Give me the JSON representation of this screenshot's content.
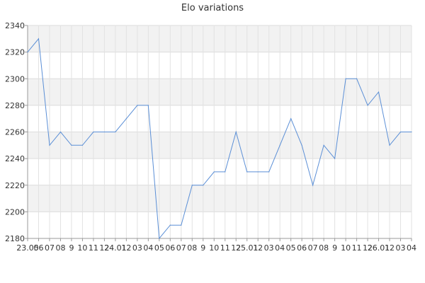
{
  "chart_data": {
    "type": "line",
    "title": "Elo variations",
    "xlabel": "",
    "ylabel": "",
    "ylim": [
      2180,
      2340
    ],
    "y_ticks": [
      2180,
      2200,
      2220,
      2240,
      2260,
      2280,
      2300,
      2320,
      2340
    ],
    "grid": true,
    "banded_background": true,
    "x_tick_labels": [
      "23.05",
      "06",
      "07",
      "08",
      "9",
      "10",
      "11",
      "12",
      "24.01",
      "12",
      "03",
      "04",
      "05",
      "06",
      "07",
      "08",
      "9",
      "10",
      "11",
      "12",
      "25.01",
      "12",
      "03",
      "04",
      "05",
      "06",
      "07",
      "08",
      "9",
      "10",
      "11",
      "12",
      "26.01",
      "12",
      "03",
      "04"
    ],
    "series": [
      {
        "values": [
          2320,
          2330,
          2250,
          2260,
          2250,
          2250,
          2260,
          2260,
          2260,
          2270,
          2280,
          2280,
          2180,
          2190,
          2190,
          2220,
          2220,
          2230,
          2230,
          2260,
          2230,
          2230,
          2230,
          2250,
          2270,
          2250,
          2220,
          2250,
          2240,
          2300,
          2300,
          2280,
          2290,
          2250,
          2260,
          2260
        ],
        "color": "#5b8fd6"
      }
    ]
  }
}
